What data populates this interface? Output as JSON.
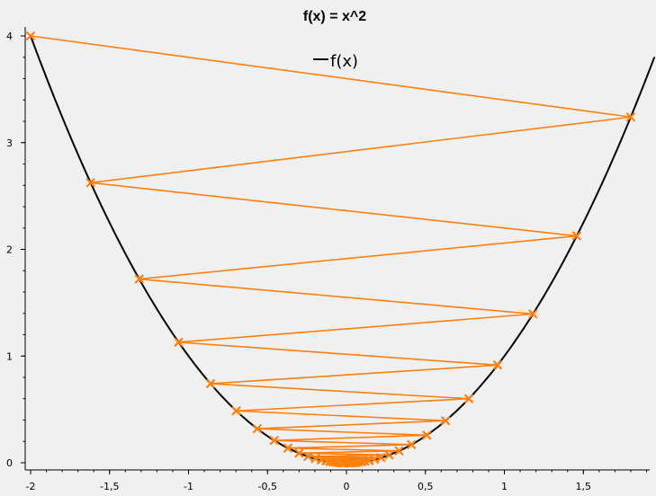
{
  "chart_data": {
    "type": "line",
    "title": "f(x) = x^2",
    "xlabel": "",
    "ylabel": "",
    "xlim": [
      -2.0,
      1.9
    ],
    "ylim": [
      0,
      4.0
    ],
    "x_tick_values": [
      -2,
      -1.5,
      -1,
      -0.5,
      0,
      0.5,
      1,
      1.5
    ],
    "x_tick_labels": [
      "-2",
      "-1,5",
      "-1",
      "-0,5",
      "0",
      "0,5",
      "1",
      "1,5"
    ],
    "y_tick_values": [
      0,
      1,
      2,
      3,
      4
    ],
    "y_tick_labels": [
      "0",
      "1",
      "2",
      "3",
      "4"
    ],
    "grid": false,
    "legend": {
      "position": "top-center",
      "entries": [
        "f(x)"
      ]
    },
    "series": [
      {
        "name": "f(x)",
        "kind": "function",
        "function": "x^2",
        "x_range": [
          -2.0,
          1.95
        ],
        "color": "#000000"
      },
      {
        "kind": "iterates",
        "marker": "x",
        "color": "#ff7f0e",
        "x": [
          -2.0,
          1.8,
          -1.62,
          1.458,
          -1.3122,
          1.181,
          -1.0629,
          0.9566,
          -0.8609,
          0.7748,
          -0.6974,
          0.6276,
          -0.5649,
          0.5084,
          -0.4575,
          0.4118,
          -0.3706,
          0.3335,
          -0.3002,
          0.2702,
          -0.2432,
          0.2188,
          -0.197,
          0.1773,
          -0.1595,
          0.1436,
          -0.1292,
          0.1163,
          -0.1047,
          0.0942,
          -0.0848,
          0.0763,
          -0.0687,
          0.0618,
          -0.0556,
          0.0501,
          -0.0451,
          0.0406,
          -0.0365,
          0.0329,
          -0.0296,
          0.0266,
          -0.0239,
          0.0216,
          -0.0194,
          0.0175,
          -0.0157,
          0.0141,
          -0.0127,
          0.0115
        ],
        "y": [
          4.0,
          3.24,
          2.6244,
          2.1258,
          1.7219,
          1.3947,
          1.1297,
          0.9151,
          0.7412,
          0.6004,
          0.4863,
          0.3939,
          0.3191,
          0.2585,
          0.2093,
          0.1696,
          0.1374,
          0.1112,
          0.0901,
          0.073,
          0.0591,
          0.0479,
          0.0388,
          0.0314,
          0.0254,
          0.0206,
          0.0167,
          0.0135,
          0.011,
          0.0089,
          0.0072,
          0.0058,
          0.0047,
          0.0038,
          0.0031,
          0.0025,
          0.002,
          0.0016,
          0.0013,
          0.0011,
          0.0009,
          0.0007,
          0.0006,
          0.0005,
          0.0004,
          0.0003,
          0.0002,
          0.0002,
          0.0002,
          0.0001
        ]
      }
    ]
  }
}
